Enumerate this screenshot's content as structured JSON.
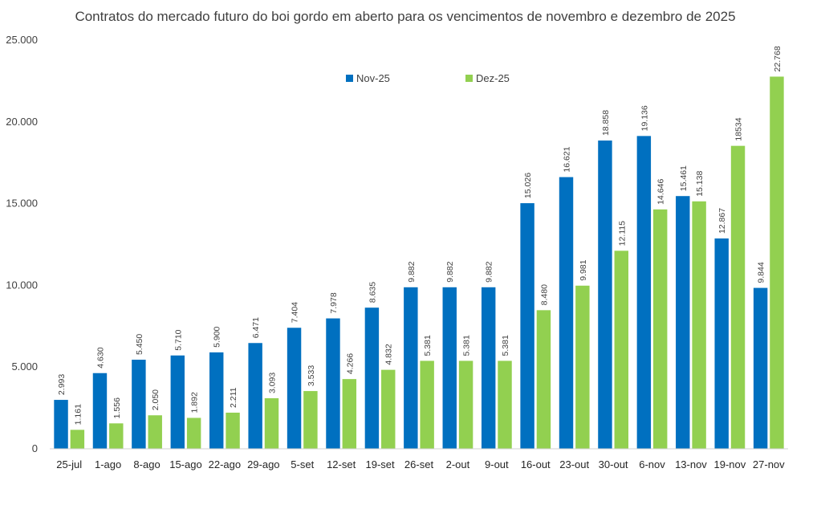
{
  "chart_data": {
    "type": "bar",
    "title": "Contratos do mercado futuro do boi gordo em aberto para os vencimentos de novembro e dezembro de 2025",
    "xlabel": "",
    "ylabel": "",
    "ylim": [
      0,
      25000
    ],
    "yticks": [
      0,
      5000,
      10000,
      15000,
      20000,
      25000
    ],
    "ytick_labels": [
      "0",
      "5.000",
      "10.000",
      "15.000",
      "20.000",
      "25.000"
    ],
    "grid": false,
    "legend_position": "top-center",
    "categories": [
      "25-jul",
      "1-ago",
      "8-ago",
      "15-ago",
      "22-ago",
      "29-ago",
      "5-set",
      "12-set",
      "19-set",
      "26-set",
      "2-out",
      "9-out",
      "16-out",
      "23-out",
      "30-out",
      "6-nov",
      "13-nov",
      "19-nov",
      "27-nov"
    ],
    "series": [
      {
        "name": "Nov-25",
        "color": "#0070C0",
        "values": [
          2993,
          4630,
          5450,
          5710,
          5900,
          6471,
          7404,
          7978,
          8635,
          9882,
          9882,
          9882,
          15026,
          16621,
          18858,
          19136,
          15461,
          12867,
          9844
        ],
        "labels": [
          "2.993",
          "4.630",
          "5.450",
          "5.710",
          "5.900",
          "6.471",
          "7.404",
          "7.978",
          "8.635",
          "9.882",
          "9.882",
          "9.882",
          "15.026",
          "16.621",
          "18.858",
          "19.136",
          "15.461",
          "12.867",
          "9.844"
        ]
      },
      {
        "name": "Dez-25",
        "color": "#92D050",
        "values": [
          1161,
          1556,
          2050,
          1892,
          2211,
          3093,
          3533,
          4266,
          4832,
          5381,
          5381,
          5381,
          8480,
          9981,
          12115,
          14646,
          15138,
          18534,
          22768
        ],
        "labels": [
          "1.161",
          "1.556",
          "2.050",
          "1.892",
          "2.211",
          "3.093",
          "3.533",
          "4.266",
          "4.832",
          "5.381",
          "5.381",
          "5.381",
          "8.480",
          "9.981",
          "12.115",
          "14.646",
          "15.138",
          "18534",
          "22.768"
        ]
      }
    ]
  }
}
